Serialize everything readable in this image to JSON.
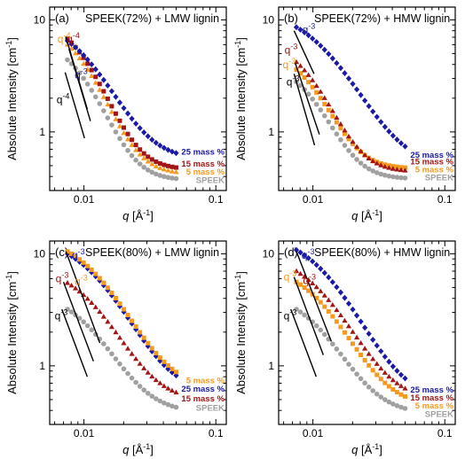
{
  "figure": {
    "ylabel": "Absolute Intensity [cm",
    "ylabel_exp": "-1",
    "ylabel_close": "]",
    "xlabel": "q",
    "xlabel_unit": " [Å",
    "xlabel_exp": "-1",
    "xlabel_close": "]"
  },
  "colors": {
    "blue": "#1a1aa6",
    "red": "#a31515",
    "orange": "#f59a1e",
    "gray": "#a0a0a0",
    "fit": "#000000"
  },
  "chart_data": [
    {
      "type": "scatter",
      "panel": "(a)",
      "title": "SPEEK(72%) + LMW lignin",
      "xscale": "log",
      "yscale": "log",
      "xlim": [
        0.0055,
        0.12
      ],
      "ylim": [
        0.3,
        13
      ],
      "x_ticks": [
        "0.01",
        "0.1"
      ],
      "y_ticks": [
        "1",
        "10"
      ],
      "legend": [
        "25 mass %",
        "15 mass %",
        "5 mass %",
        "SPEEK"
      ],
      "legend_colors": [
        "blue",
        "red",
        "orange",
        "gray"
      ],
      "legend_y": [
        0.66,
        0.52,
        0.44,
        0.37
      ],
      "series": [
        {
          "name": "25 mass %",
          "color": "blue",
          "marker": "diamond",
          "start": 6.5,
          "end": 0.56,
          "slope": 3,
          "knee": 0.0105,
          "k": 2.3
        },
        {
          "name": "15 mass %",
          "color": "red",
          "marker": "square",
          "start": 6.8,
          "end": 0.46,
          "slope": 4,
          "knee": 0.0105,
          "k": 2.5
        },
        {
          "name": "5 mass %",
          "color": "orange",
          "marker": "triangle",
          "start": 6.0,
          "end": 0.42,
          "slope": 4,
          "knee": 0.0105,
          "k": 2.5
        },
        {
          "name": "SPEEK",
          "color": "gray",
          "marker": "circle",
          "start": 4.4,
          "end": 0.37,
          "slope": 4,
          "knee": 0.0105,
          "k": 2.6
        }
      ],
      "fits": [
        {
          "x1": 0.0073,
          "x2": 0.0106,
          "y1": 7.0,
          "y2": 1.6
        },
        {
          "x1": 0.0077,
          "x2": 0.0112,
          "y1": 5.5,
          "y2": 1.25
        },
        {
          "x1": 0.0072,
          "x2": 0.0101,
          "y1": 3.4,
          "y2": 0.88
        }
      ],
      "annotations": [
        {
          "base": "q",
          "exp": "-4",
          "color": "orange",
          "x": 0.0063,
          "y": 6.3
        },
        {
          "base": "q",
          "exp": "-4",
          "color": "red",
          "x": 0.0074,
          "y": 6.3
        },
        {
          "base": "q",
          "exp": "-3",
          "color": "blue",
          "x": 0.0085,
          "y": 3.0
        },
        {
          "base": "q",
          "exp": "-4",
          "color": "fit",
          "x": 0.0062,
          "y": 1.8
        }
      ]
    },
    {
      "type": "scatter",
      "panel": "(b)",
      "title": "SPEEK(72%) + HMW lignin",
      "xscale": "log",
      "yscale": "log",
      "xlim": [
        0.0055,
        0.12
      ],
      "ylim": [
        0.3,
        13
      ],
      "x_ticks": [
        "0.01",
        "0.1"
      ],
      "y_ticks": [
        "1",
        "10"
      ],
      "legend": [
        "25 mass %",
        "15 mass %",
        "5 mass %",
        "SPEEK"
      ],
      "legend_colors": [
        "blue",
        "red",
        "orange",
        "gray"
      ],
      "legend_y": [
        0.62,
        0.54,
        0.46,
        0.39
      ],
      "series": [
        {
          "name": "25 mass %",
          "color": "blue",
          "marker": "diamond",
          "start": 8.6,
          "end": 0.5,
          "slope": 3,
          "knee": 0.014,
          "k": 1.8
        },
        {
          "name": "15 mass %",
          "color": "red",
          "marker": "triangle",
          "start": 4.2,
          "end": 0.44,
          "slope": 4,
          "knee": 0.0105,
          "k": 2.5
        },
        {
          "name": "5 mass %",
          "color": "orange",
          "marker": "square",
          "start": 3.6,
          "end": 0.47,
          "slope": 4,
          "knee": 0.0105,
          "k": 2.5
        },
        {
          "name": "SPEEK",
          "color": "gray",
          "marker": "circle",
          "start": 2.8,
          "end": 0.38,
          "slope": 4,
          "knee": 0.0105,
          "k": 2.6
        }
      ],
      "fits": [
        {
          "x1": 0.0072,
          "x2": 0.0102,
          "y1": 8.0,
          "y2": 3.3
        },
        {
          "x1": 0.0073,
          "x2": 0.0112,
          "y1": 4.2,
          "y2": 0.95
        },
        {
          "x1": 0.0072,
          "x2": 0.0103,
          "y1": 3.3,
          "y2": 0.76
        }
      ],
      "annotations": [
        {
          "base": "q",
          "exp": "-3",
          "color": "blue",
          "x": 0.0083,
          "y": 7.6
        },
        {
          "base": "q",
          "exp": "-3",
          "color": "red",
          "x": 0.0061,
          "y": 5.0
        },
        {
          "base": "q",
          "exp": "-3",
          "color": "orange",
          "x": 0.0059,
          "y": 3.7
        },
        {
          "base": "q",
          "exp": "-3",
          "color": "fit",
          "x": 0.0063,
          "y": 2.6
        }
      ]
    },
    {
      "type": "scatter",
      "panel": "(c)",
      "title": "SPEEK(80%) + LMW lignin",
      "xscale": "log",
      "yscale": "log",
      "xlim": [
        0.0055,
        0.12
      ],
      "ylim": [
        0.3,
        13
      ],
      "x_ticks": [
        "0.01",
        "0.1"
      ],
      "y_ticks": [
        "1",
        "10"
      ],
      "legend": [
        "5 mass %",
        "25 mass %",
        "15 mass %",
        "SPEEK"
      ],
      "legend_colors": [
        "orange",
        "blue",
        "red",
        "gray"
      ],
      "legend_y": [
        0.74,
        0.62,
        0.51,
        0.42
      ],
      "series": [
        {
          "name": "5 mass %",
          "color": "orange",
          "marker": "square",
          "start": 10.5,
          "end": 0.62,
          "slope": 3,
          "knee": 0.0135,
          "k": 2.0
        },
        {
          "name": "25 mass %",
          "color": "blue",
          "marker": "diamond",
          "start": 10.0,
          "end": 0.57,
          "slope": 3,
          "knee": 0.0135,
          "k": 2.0
        },
        {
          "name": "15 mass %",
          "color": "red",
          "marker": "triangle",
          "start": 5.5,
          "end": 0.48,
          "slope": 3,
          "knee": 0.012,
          "k": 2.2
        },
        {
          "name": "SPEEK",
          "color": "gray",
          "marker": "circle",
          "start": 3.2,
          "end": 0.38,
          "slope": 3,
          "knee": 0.0112,
          "k": 2.3
        }
      ],
      "fits": [
        {
          "x1": 0.0073,
          "x2": 0.0132,
          "y1": 10.5,
          "y2": 1.6
        },
        {
          "x1": 0.007,
          "x2": 0.0118,
          "y1": 5.6,
          "y2": 1.1
        },
        {
          "x1": 0.0068,
          "x2": 0.0106,
          "y1": 3.2,
          "y2": 0.8
        }
      ],
      "annotations": [
        {
          "base": "q",
          "exp": "-3",
          "color": "blue",
          "x": 0.0081,
          "y": 9.0
        },
        {
          "base": "q",
          "exp": "-3",
          "color": "orange",
          "x": 0.0085,
          "y": 5.3
        },
        {
          "base": "q",
          "exp": "-3",
          "color": "red",
          "x": 0.0061,
          "y": 5.6
        },
        {
          "base": "q",
          "exp": "-3",
          "color": "fit",
          "x": 0.006,
          "y": 2.6
        }
      ]
    },
    {
      "type": "scatter",
      "panel": "(d)",
      "title": "SPEEK(80%) + HMW lignin",
      "xscale": "log",
      "yscale": "log",
      "xlim": [
        0.0055,
        0.12
      ],
      "ylim": [
        0.3,
        13
      ],
      "x_ticks": [
        "0.01",
        "0.1"
      ],
      "y_ticks": [
        "1",
        "10"
      ],
      "legend": [
        "25 mass %",
        "15 mass %",
        "5 mass %",
        "SPEEK"
      ],
      "legend_colors": [
        "blue",
        "red",
        "orange",
        "gray"
      ],
      "legend_y": [
        0.61,
        0.52,
        0.44,
        0.37
      ],
      "series": [
        {
          "name": "25 mass %",
          "color": "blue",
          "marker": "diamond",
          "start": 10.8,
          "end": 0.5,
          "slope": 3,
          "knee": 0.0135,
          "k": 2.0
        },
        {
          "name": "15 mass %",
          "color": "red",
          "marker": "triangle",
          "start": 7.0,
          "end": 0.48,
          "slope": 3,
          "knee": 0.0125,
          "k": 2.0
        },
        {
          "name": "5 mass %",
          "color": "orange",
          "marker": "square",
          "start": 5.6,
          "end": 0.43,
          "slope": 3,
          "knee": 0.012,
          "k": 2.2
        },
        {
          "name": "SPEEK",
          "color": "gray",
          "marker": "circle",
          "start": 3.2,
          "end": 0.37,
          "slope": 3,
          "knee": 0.0112,
          "k": 2.3
        }
      ],
      "fits": [
        {
          "x1": 0.0075,
          "x2": 0.0138,
          "y1": 10.5,
          "y2": 1.65
        },
        {
          "x1": 0.0072,
          "x2": 0.012,
          "y1": 6.2,
          "y2": 1.25
        },
        {
          "x1": 0.0068,
          "x2": 0.0106,
          "y1": 3.2,
          "y2": 0.8
        }
      ],
      "annotations": [
        {
          "base": "q",
          "exp": "-3",
          "color": "blue",
          "x": 0.0082,
          "y": 9.0
        },
        {
          "base": "q",
          "exp": "-3",
          "color": "red",
          "x": 0.0084,
          "y": 5.4
        },
        {
          "base": "q",
          "exp": "-3",
          "color": "orange",
          "x": 0.006,
          "y": 5.8
        },
        {
          "base": "q",
          "exp": "-3",
          "color": "fit",
          "x": 0.006,
          "y": 2.6
        }
      ]
    }
  ]
}
